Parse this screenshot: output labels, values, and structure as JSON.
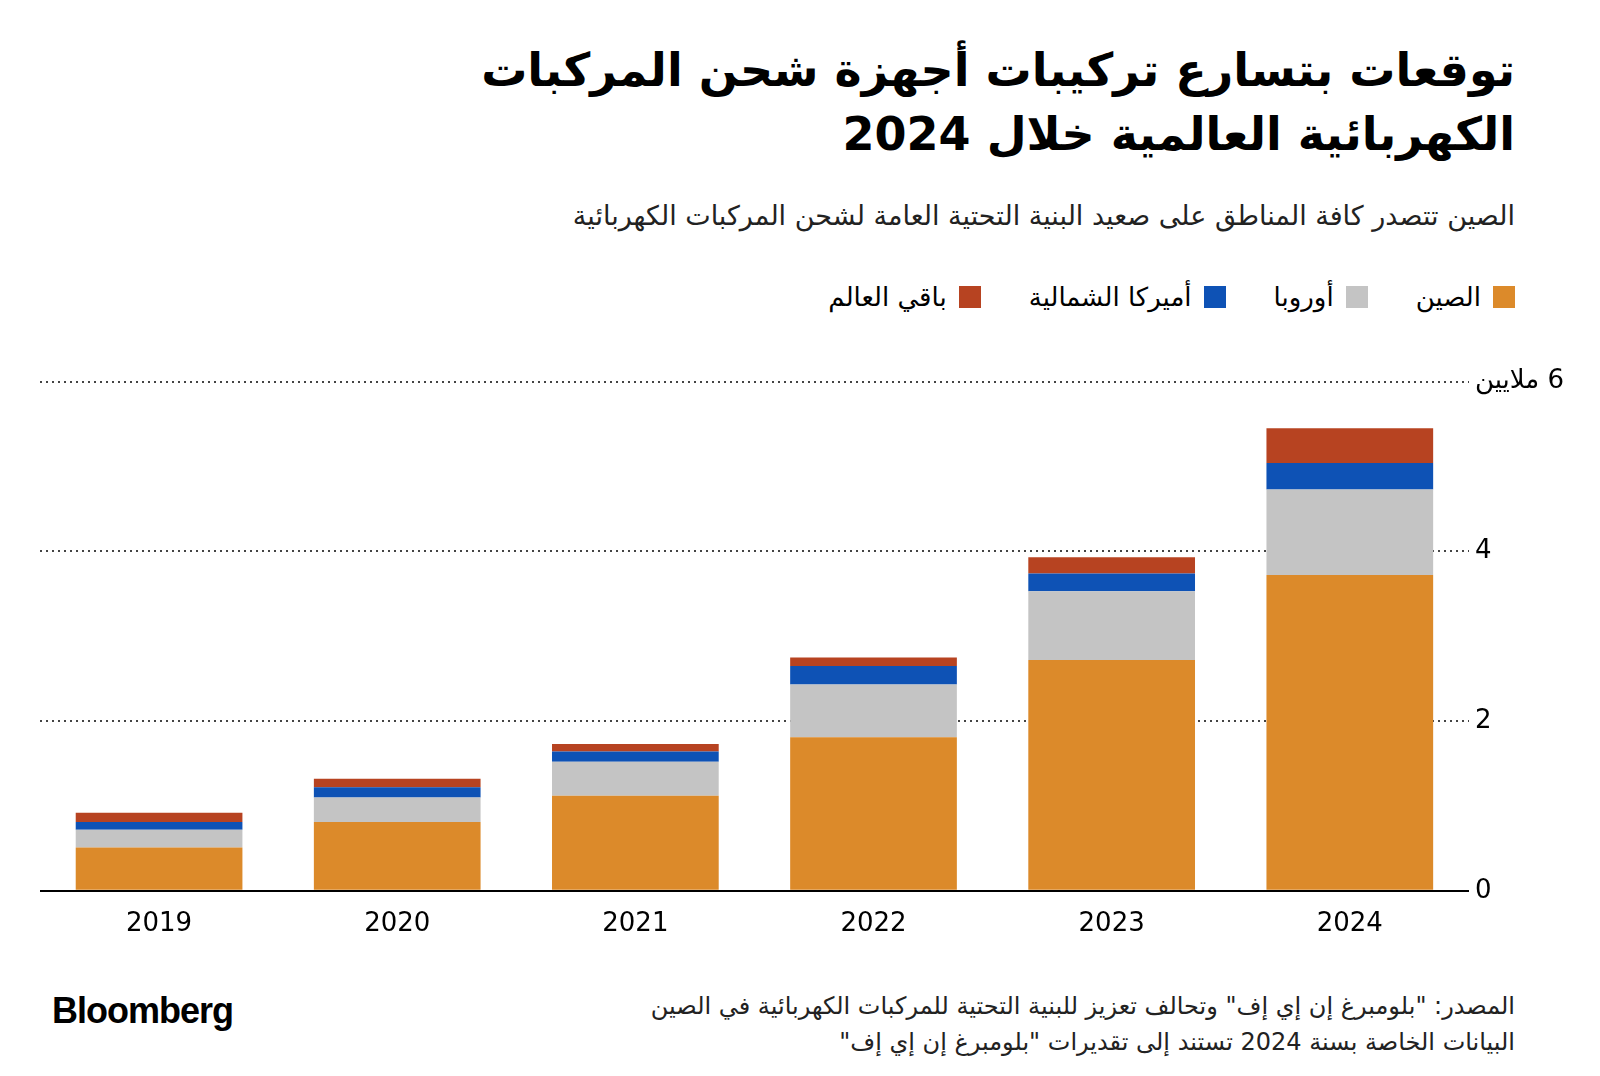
{
  "chart_data": {
    "type": "bar",
    "title": "توقعات بتسارع تركيبات أجهزة شحن المركبات الكهربائية العالمية خلال 2024",
    "subtitle": "الصين تتصدر كافة المناطق على صعيد البنية التحتية العامة لشحن المركبات الكهربائية",
    "source": "المصدر: \"بلومبرغ إن إي إف\" وتحالف تعزيز للبنية التحتية للمركبات الكهربائية في الصين",
    "note": "البيانات الخاصة بسنة 2024 تستند إلى تقديرات \"بلومبرغ إن إي إف\"",
    "brand": "Bloomberg",
    "categories": [
      "2019",
      "2020",
      "2021",
      "2022",
      "2023",
      "2024"
    ],
    "series": [
      {
        "name": "الصين",
        "color": "#dc8a2a",
        "values": [
          0.51,
          0.81,
          1.12,
          1.81,
          2.72,
          3.72
        ]
      },
      {
        "name": "أوروبا",
        "color": "#c4c4c4",
        "values": [
          0.21,
          0.29,
          0.4,
          0.62,
          0.81,
          1.01
        ]
      },
      {
        "name": "أميركا الشمالية",
        "color": "#0e52b5",
        "values": [
          0.09,
          0.12,
          0.12,
          0.22,
          0.21,
          0.31
        ]
      },
      {
        "name": "باقي العالم",
        "color": "#b74321",
        "values": [
          0.11,
          0.1,
          0.09,
          0.1,
          0.19,
          0.41
        ]
      }
    ],
    "stacked": true,
    "ylim": [
      0,
      6
    ],
    "yticks": [
      0,
      2,
      4,
      {
        "value": 6,
        "label": "6 ملايين"
      }
    ],
    "grid": true,
    "legend": "top-right"
  }
}
